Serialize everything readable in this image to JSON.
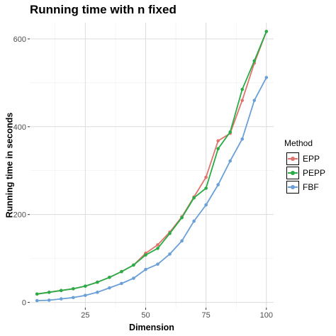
{
  "chart_data": {
    "type": "line",
    "title": "Running time with n fixed",
    "xlabel": "Dimension",
    "ylabel": "Running time in seconds",
    "xlim": [
      2,
      103
    ],
    "ylim": [
      -12,
      637
    ],
    "x_ticks": [
      25,
      50,
      75,
      100
    ],
    "y_ticks": [
      0,
      200,
      400,
      600
    ],
    "grid": true,
    "legend_title": "Method",
    "legend_position": "right",
    "x": [
      5,
      10,
      15,
      20,
      25,
      30,
      35,
      40,
      45,
      50,
      55,
      60,
      65,
      70,
      75,
      80,
      85,
      90,
      95,
      100
    ],
    "series": [
      {
        "name": "EPP",
        "color": "#e0736b",
        "values": [
          19,
          23,
          27,
          31,
          37,
          46,
          57,
          70,
          85,
          112,
          131,
          160,
          195,
          240,
          285,
          368,
          385,
          460,
          545,
          617
        ]
      },
      {
        "name": "PEPP",
        "color": "#2aab47",
        "values": [
          19,
          23,
          27,
          31,
          37,
          46,
          57,
          70,
          85,
          108,
          123,
          157,
          193,
          238,
          260,
          350,
          388,
          485,
          550,
          617
        ]
      },
      {
        "name": "FBF",
        "color": "#6a9fd7",
        "values": [
          4,
          5,
          8,
          11,
          16,
          23,
          33,
          43,
          55,
          75,
          87,
          110,
          140,
          185,
          222,
          268,
          322,
          372,
          460,
          512
        ]
      }
    ]
  }
}
